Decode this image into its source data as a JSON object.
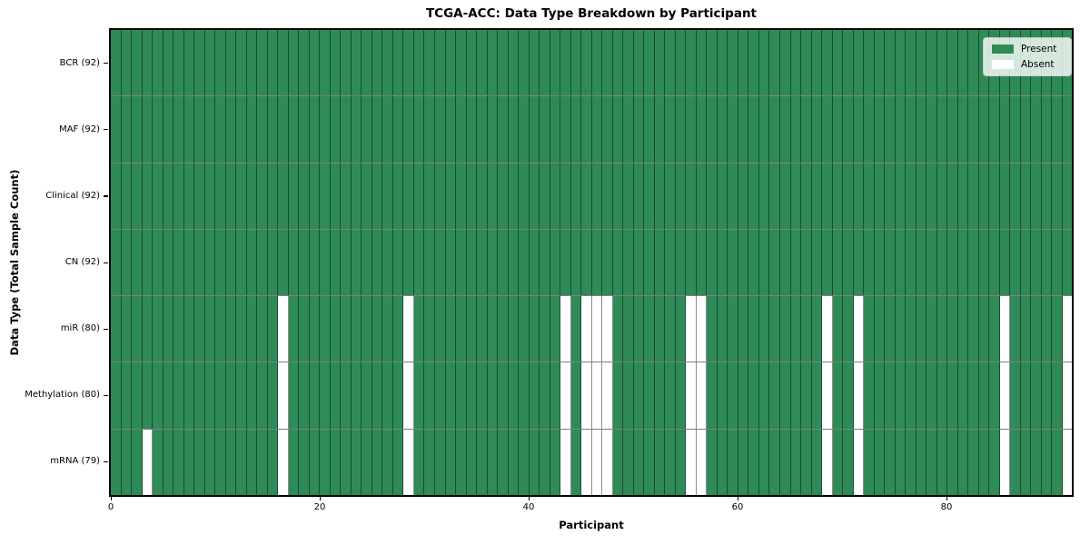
{
  "chart_data": {
    "type": "heatmap",
    "title": "TCGA-ACC: Data Type Breakdown by Participant",
    "xlabel": "Participant",
    "ylabel": "Data Type (Total Sample Count)",
    "x_ticks": [
      0,
      20,
      40,
      60,
      80
    ],
    "x_range": [
      0,
      92
    ],
    "n_participants": 92,
    "grid": true,
    "legend_position": "upper right",
    "rows": [
      {
        "label": "BCR (92)",
        "data_type": "BCR",
        "present_count": 92,
        "total": 92,
        "absent_participants": []
      },
      {
        "label": "MAF (92)",
        "data_type": "MAF",
        "present_count": 92,
        "total": 92,
        "absent_participants": []
      },
      {
        "label": "Clinical (92)",
        "data_type": "Clinical",
        "present_count": 92,
        "total": 92,
        "absent_participants": []
      },
      {
        "label": "CN (92)",
        "data_type": "CN",
        "present_count": 92,
        "total": 92,
        "absent_participants": []
      },
      {
        "label": "miR (80)",
        "data_type": "miR",
        "present_count": 80,
        "total": 92,
        "absent_participants": [
          16,
          28,
          43,
          45,
          46,
          47,
          55,
          56,
          68,
          71,
          85,
          91
        ]
      },
      {
        "label": "Methylation (80)",
        "data_type": "Methylation",
        "present_count": 80,
        "total": 92,
        "absent_participants": [
          16,
          28,
          43,
          45,
          46,
          47,
          55,
          56,
          68,
          71,
          85,
          91
        ]
      },
      {
        "label": "mRNA (79)",
        "data_type": "mRNA",
        "present_count": 79,
        "total": 92,
        "absent_participants": [
          3,
          16,
          28,
          43,
          45,
          46,
          47,
          55,
          56,
          68,
          71,
          85,
          91
        ]
      }
    ],
    "legend": [
      {
        "label": "Present",
        "color": "#2e8b57"
      },
      {
        "label": "Absent",
        "color": "#ffffff"
      }
    ],
    "colors": {
      "present": "#2e8b57",
      "absent": "#ffffff",
      "axis_border": "#000000",
      "text": "#000000"
    }
  }
}
